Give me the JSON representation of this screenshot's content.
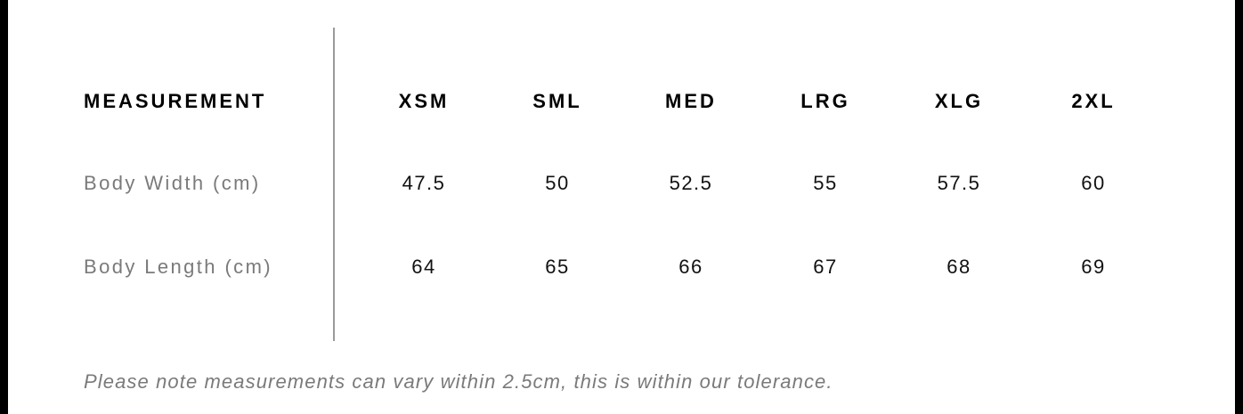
{
  "table": {
    "header": [
      "MEASUREMENT",
      "XSM",
      "SML",
      "MED",
      "LRG",
      "XLG",
      "2XL"
    ],
    "rows": [
      {
        "label": "Body Width (cm)",
        "values": [
          "47.5",
          "50",
          "52.5",
          "55",
          "57.5",
          "60"
        ]
      },
      {
        "label": "Body Length (cm)",
        "values": [
          "64",
          "65",
          "66",
          "67",
          "68",
          "69"
        ]
      }
    ]
  },
  "note": "Please note measurements can vary within 2.5cm, this is within our tolerance."
}
